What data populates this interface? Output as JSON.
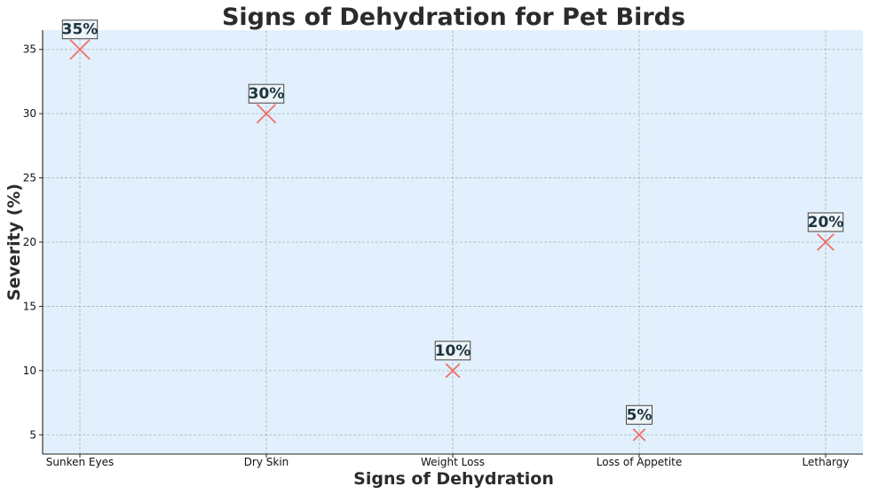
{
  "chart_data": {
    "type": "scatter",
    "title": "Signs of Dehydration for Pet Birds",
    "xlabel": "Signs of Dehydration",
    "ylabel": "Severity (%)",
    "categories": [
      "Sunken Eyes",
      "Dry Skin",
      "Weight Loss",
      "Loss of Appetite",
      "Lethargy"
    ],
    "values": [
      35,
      30,
      10,
      5,
      20
    ],
    "data_labels": [
      "35%",
      "30%",
      "10%",
      "5%",
      "20%"
    ],
    "y_ticks": [
      5,
      10,
      15,
      20,
      25,
      30,
      35
    ],
    "ylim": [
      3.5,
      36.5
    ],
    "grid": true,
    "marker": "x",
    "marker_size_scales_with_value": true,
    "colors": {
      "marker": "#f07067",
      "plot_background": "#e1f0fc",
      "grid": "#a9b2b8",
      "label_box_fill": "#eef3f6",
      "label_box_border": "#333333",
      "label_text": "#1b3440"
    }
  }
}
